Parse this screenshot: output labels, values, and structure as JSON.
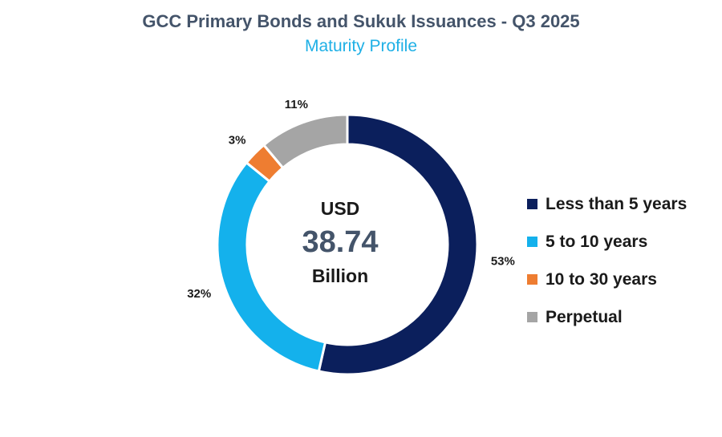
{
  "title": "GCC Primary Bonds and Sukuk Issuances - Q3 2025",
  "subtitle": "Maturity Profile",
  "center": {
    "line1": "USD",
    "value": "38.74",
    "line3": "Billion"
  },
  "colors": {
    "title": "#44546a",
    "subtitle": "#1fb0e6",
    "center_value": "#44546a"
  },
  "chart_data": {
    "type": "pie",
    "donut": true,
    "title": "GCC Primary Bonds and Sukuk Issuances - Q3 2025",
    "subtitle": "Maturity Profile",
    "legend_position": "right",
    "categories": [
      "Less than 5 years",
      "5 to 10 years",
      "10 to 30 years",
      "Perpetual"
    ],
    "values": [
      53,
      32,
      3,
      11
    ],
    "labels": [
      "53%",
      "32%",
      "3%",
      "11%"
    ],
    "colors": [
      "#0b1f5c",
      "#14b1ec",
      "#ee7d31",
      "#a5a5a5"
    ]
  }
}
